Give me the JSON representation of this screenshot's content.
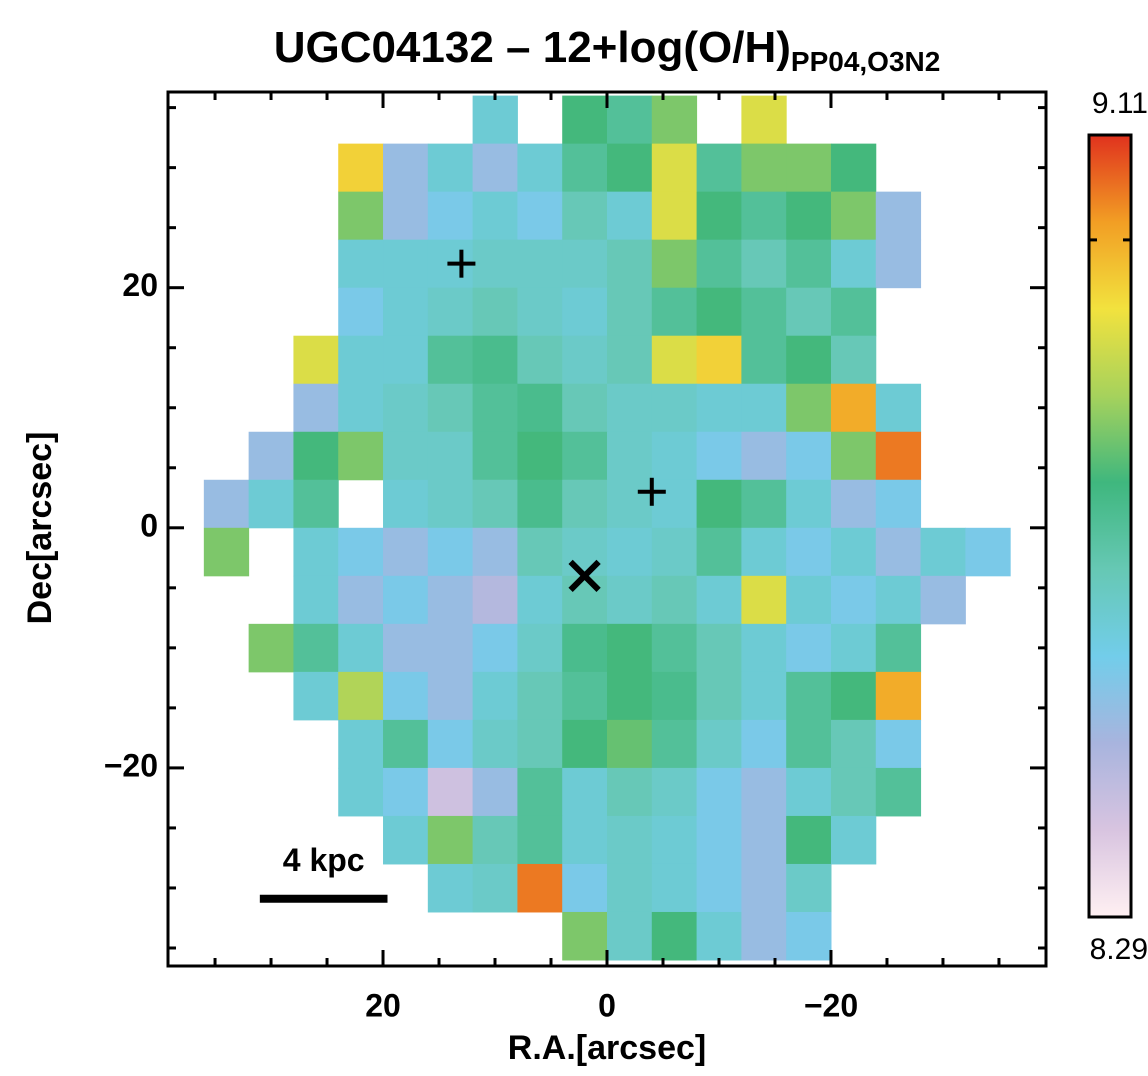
{
  "chart_data": {
    "type": "heatmap",
    "title": "UGC04132 – 12+log(O/H)",
    "title_subscript": "PP04,O3N2",
    "xlabel": "R.A.[arcsec]",
    "ylabel": "Dec[arcsec]",
    "xlim": [
      39.2,
      -39.2
    ],
    "ylim": [
      -36.5,
      36.3
    ],
    "xticks": [
      20,
      0,
      {
        "value": -20,
        "label": "−20"
      }
    ],
    "yticks": [
      {
        "value": -20,
        "label": "−20"
      },
      0,
      20
    ],
    "xminorticks": [
      35,
      30,
      25,
      15,
      10,
      5,
      -5,
      -10,
      -15,
      -25,
      -30,
      -35
    ],
    "yminorticks": [
      -35,
      -30,
      -25,
      -15,
      -10,
      -5,
      5,
      10,
      15,
      25,
      30,
      35
    ],
    "clim": [
      8.29,
      9.11
    ],
    "cticks": [
      9.0
    ],
    "colormap": [
      "#fff0f2",
      "#d8c4e0",
      "#a8b4de",
      "#72cdea",
      "#66c8b4",
      "#3fb77e",
      "#a6d25c",
      "#f2e23e",
      "#f29e24",
      "#e0321e"
    ],
    "x": [
      34,
      30,
      26,
      22,
      18,
      14,
      10,
      6,
      2,
      -2,
      -6,
      -10,
      -14,
      -18,
      -22,
      -26,
      -30,
      -34
    ],
    "y": [
      34,
      30,
      26,
      22,
      18,
      14,
      10,
      6,
      2,
      -2,
      -6,
      -10,
      -14,
      -18,
      -22,
      -26,
      -30,
      -34
    ],
    "z": [
      [
        null,
        null,
        null,
        null,
        null,
        null,
        8.6,
        null,
        8.75,
        8.7,
        8.8,
        null,
        8.9,
        null,
        null,
        null,
        null,
        null
      ],
      [
        null,
        null,
        null,
        8.95,
        8.5,
        8.6,
        8.5,
        8.6,
        8.7,
        8.75,
        8.9,
        8.7,
        8.8,
        8.8,
        8.75,
        null,
        null,
        null
      ],
      [
        null,
        null,
        null,
        8.8,
        8.5,
        8.55,
        8.6,
        8.55,
        8.65,
        8.6,
        8.9,
        8.75,
        8.7,
        8.75,
        8.8,
        8.5,
        null,
        null
      ],
      [
        null,
        null,
        null,
        8.6,
        8.6,
        8.6,
        8.62,
        8.62,
        8.62,
        8.65,
        8.8,
        8.7,
        8.65,
        8.7,
        8.6,
        8.5,
        null,
        null
      ],
      [
        null,
        null,
        null,
        8.55,
        8.6,
        8.62,
        8.65,
        8.62,
        8.6,
        8.65,
        8.7,
        8.75,
        8.7,
        8.65,
        8.7,
        null,
        null,
        null
      ],
      [
        null,
        null,
        8.9,
        8.6,
        8.6,
        8.7,
        8.72,
        8.65,
        8.62,
        8.65,
        8.9,
        8.95,
        8.7,
        8.75,
        8.65,
        null,
        null,
        null
      ],
      [
        null,
        null,
        8.5,
        8.6,
        8.62,
        8.65,
        8.7,
        8.72,
        8.65,
        8.62,
        8.62,
        8.6,
        8.6,
        8.8,
        9.0,
        8.6,
        null,
        null
      ],
      [
        null,
        8.5,
        8.75,
        8.8,
        8.62,
        8.62,
        8.7,
        8.75,
        8.7,
        8.62,
        8.6,
        8.55,
        8.5,
        8.55,
        8.8,
        9.05,
        null,
        null
      ],
      [
        8.5,
        8.6,
        8.7,
        null,
        8.6,
        8.62,
        8.65,
        8.72,
        8.65,
        8.62,
        8.6,
        8.75,
        8.7,
        8.6,
        8.5,
        8.55,
        null,
        null
      ],
      [
        8.8,
        null,
        8.6,
        8.55,
        8.5,
        8.55,
        8.5,
        8.65,
        8.62,
        8.6,
        8.62,
        8.7,
        8.6,
        8.55,
        8.6,
        8.5,
        8.6,
        8.55
      ],
      [
        null,
        null,
        8.6,
        8.5,
        8.55,
        8.5,
        8.45,
        8.6,
        8.65,
        8.62,
        8.65,
        8.6,
        8.9,
        8.6,
        8.55,
        8.6,
        8.5,
        null
      ],
      [
        null,
        8.8,
        8.7,
        8.6,
        8.5,
        8.5,
        8.55,
        8.62,
        8.72,
        8.75,
        8.7,
        8.65,
        8.6,
        8.55,
        8.6,
        8.7,
        null,
        null
      ],
      [
        null,
        null,
        8.6,
        8.85,
        8.55,
        8.5,
        8.6,
        8.65,
        8.7,
        8.75,
        8.72,
        8.65,
        8.6,
        8.7,
        8.75,
        9.0,
        null,
        null
      ],
      [
        null,
        null,
        null,
        8.6,
        8.7,
        8.55,
        8.62,
        8.65,
        8.75,
        8.78,
        8.7,
        8.62,
        8.55,
        8.7,
        8.65,
        8.55,
        null,
        null
      ],
      [
        null,
        null,
        null,
        8.6,
        8.55,
        8.4,
        8.5,
        8.7,
        8.6,
        8.65,
        8.62,
        8.55,
        8.5,
        8.6,
        8.65,
        8.7,
        null,
        null
      ],
      [
        null,
        null,
        null,
        null,
        8.6,
        8.8,
        8.65,
        8.7,
        8.6,
        8.62,
        8.6,
        8.55,
        8.5,
        8.75,
        8.6,
        null,
        null,
        null
      ],
      [
        null,
        null,
        null,
        null,
        null,
        8.6,
        8.62,
        9.05,
        8.55,
        8.62,
        8.6,
        8.55,
        8.5,
        8.62,
        null,
        null,
        null,
        null
      ],
      [
        null,
        null,
        null,
        null,
        null,
        null,
        null,
        null,
        8.8,
        8.62,
        8.75,
        8.6,
        8.5,
        8.55,
        null,
        null,
        null,
        null
      ]
    ],
    "markers": [
      {
        "x": 13,
        "y": 22,
        "symbol": "plus"
      },
      {
        "x": -4,
        "y": 3,
        "symbol": "plus"
      },
      {
        "x": 2,
        "y": -4,
        "symbol": "cross"
      }
    ],
    "scalebar": {
      "label": "4 kpc",
      "x": [
        31,
        19.6
      ],
      "y": -30.9
    }
  }
}
